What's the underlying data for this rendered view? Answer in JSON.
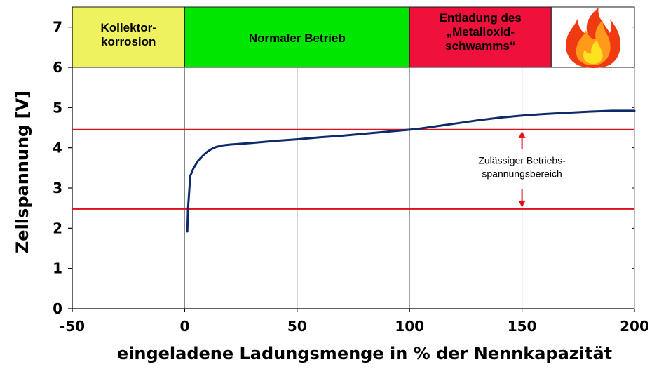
{
  "chart_data": {
    "type": "line",
    "xlabel": "eingeladene Ladungsmenge in % der Nennkapazität",
    "ylabel": "Zellspannung [V]",
    "xlim": [
      -50,
      200
    ],
    "ylim": [
      0,
      7.5
    ],
    "x_ticks": [
      -50,
      0,
      50,
      100,
      150,
      200
    ],
    "y_ticks": [
      0,
      1,
      2,
      3,
      4,
      5,
      6,
      7
    ],
    "x_tick_labels": [
      "-50",
      "0",
      "50",
      "100",
      "150",
      "200"
    ],
    "y_tick_labels": [
      "0",
      "1",
      "2",
      "3",
      "4",
      "5",
      "6",
      "7"
    ],
    "grid": "vertical",
    "series": [
      {
        "color": "#0d2a6b",
        "x": [
          1.2,
          1.5,
          2.5,
          4,
          6,
          8,
          10,
          12,
          14,
          17,
          20,
          30,
          40,
          50,
          60,
          70,
          80,
          90,
          100,
          105,
          110,
          120,
          130,
          140,
          150,
          160,
          170,
          180,
          190,
          200
        ],
        "y": [
          1.92,
          2.5,
          3.3,
          3.5,
          3.68,
          3.8,
          3.9,
          3.97,
          4.02,
          4.06,
          4.08,
          4.12,
          4.17,
          4.21,
          4.26,
          4.3,
          4.35,
          4.4,
          4.45,
          4.48,
          4.52,
          4.6,
          4.68,
          4.75,
          4.8,
          4.84,
          4.87,
          4.9,
          4.92,
          4.92
        ]
      }
    ],
    "reference_lines": [
      {
        "y": 4.45,
        "color": "#e0101a"
      },
      {
        "y": 2.48,
        "color": "#e0101a"
      }
    ],
    "zones": [
      {
        "x_from": -50,
        "x_to": 0,
        "label_lines": [
          "Kollektor-",
          "korrosion"
        ],
        "fill": "#eef25e",
        "text_color": "#000000"
      },
      {
        "x_from": 0,
        "x_to": 100,
        "label_lines": [
          "Normaler Betrieb"
        ],
        "fill": "#00e600",
        "text_color": "#000000"
      },
      {
        "x_from": 100,
        "x_to": 163,
        "label_lines": [
          "Entladung  des",
          "„Metalloxid-",
          "schwamms“"
        ],
        "fill": "#f0103c",
        "text_color": "#000000"
      },
      {
        "x_from": 163,
        "x_to": 200,
        "label_lines": [],
        "fill": "#ffffff",
        "icon": "fire-icon"
      }
    ],
    "annotation": {
      "x": 150,
      "y_from": 2.48,
      "y_to": 4.45,
      "color": "#e0101a",
      "text_lines": [
        "Zulässiger Betriebs-",
        "spannungsbereich"
      ]
    }
  }
}
